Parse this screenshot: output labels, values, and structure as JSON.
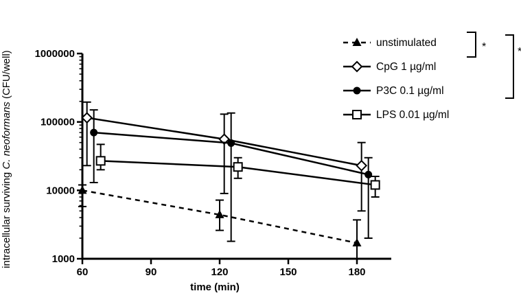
{
  "chart_data": {
    "type": "line",
    "xlabel": "time (min)",
    "ylabel_prefix": "intracellular surviving ",
    "ylabel_italic": "C. neoformans",
    "ylabel_suffix": " (CFU/well)",
    "xlim": [
      60,
      195
    ],
    "ylim": [
      1000,
      1000000
    ],
    "y_scale": "log",
    "x_ticks": [
      60,
      90,
      120,
      150,
      180
    ],
    "x_tick_labels": [
      "60",
      "90",
      "120",
      "150",
      "180"
    ],
    "y_ticks": [
      1000,
      10000,
      100000,
      1000000
    ],
    "y_tick_labels": [
      "1000",
      "10000",
      "100000",
      "1000000"
    ],
    "grid": false,
    "legend_position": "top-right",
    "series": [
      {
        "name": "unstimulated",
        "marker": "triangle-filled",
        "line_style": "dashed",
        "x": [
          60,
          120,
          180
        ],
        "y": [
          10000,
          4400,
          1700
        ],
        "err_low": [
          5800,
          2600,
          1000
        ],
        "err_high": [
          12000,
          7200,
          3700
        ]
      },
      {
        "name": "CpG 1 µg/ml",
        "marker": "diamond-open",
        "line_style": "solid",
        "x": [
          62,
          122,
          182
        ],
        "y": [
          115000,
          56000,
          23000
        ],
        "err_low": [
          23000,
          9000,
          5000
        ],
        "err_high": [
          195000,
          130000,
          50000
        ]
      },
      {
        "name": "P3C 0.1 µg/ml",
        "marker": "circle-filled",
        "line_style": "solid",
        "x": [
          65,
          125,
          185
        ],
        "y": [
          70000,
          49000,
          17000
        ],
        "err_low": [
          13000,
          1800,
          2000
        ],
        "err_high": [
          150000,
          135000,
          30000
        ]
      },
      {
        "name": "LPS 0.01 µg/ml",
        "marker": "square-open",
        "line_style": "solid",
        "x": [
          68,
          128,
          188
        ],
        "y": [
          27000,
          22000,
          12000
        ],
        "err_low": [
          20000,
          15000,
          8000
        ],
        "err_high": [
          47000,
          30000,
          16000
        ]
      }
    ],
    "significance": [
      {
        "label": "*",
        "series": [
          "unstimulated",
          "CpG 1 µg/ml"
        ]
      },
      {
        "label": "*",
        "series": [
          "unstimulated",
          "P3C 0.1 µg/ml"
        ]
      }
    ]
  }
}
